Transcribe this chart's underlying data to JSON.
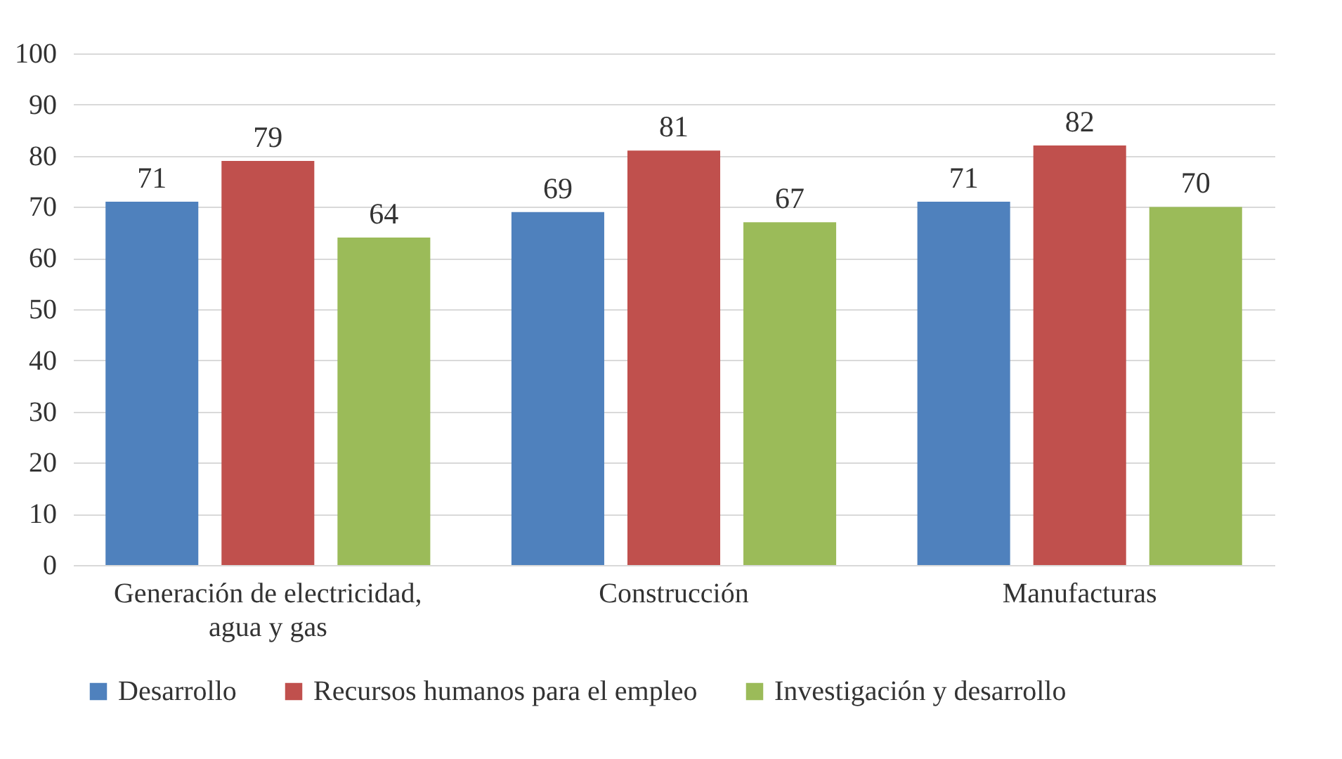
{
  "chart_data": {
    "type": "bar",
    "categories": [
      "Generación de electricidad, agua y gas",
      "Construcción",
      "Manufacturas"
    ],
    "series": [
      {
        "name": "Desarrollo",
        "color": "#4f81bd",
        "values": [
          71,
          69,
          71
        ]
      },
      {
        "name": "Recursos humanos para el empleo",
        "color": "#c0504d",
        "values": [
          79,
          81,
          82
        ]
      },
      {
        "name": "Investigación y desarrollo",
        "color": "#9bbb59",
        "values": [
          64,
          67,
          70
        ]
      }
    ],
    "ylim": [
      0,
      100
    ],
    "yticks": [
      0,
      10,
      20,
      30,
      40,
      50,
      60,
      70,
      80,
      90,
      100
    ],
    "grid": "y",
    "legend": "bottom",
    "data_labels": true
  }
}
